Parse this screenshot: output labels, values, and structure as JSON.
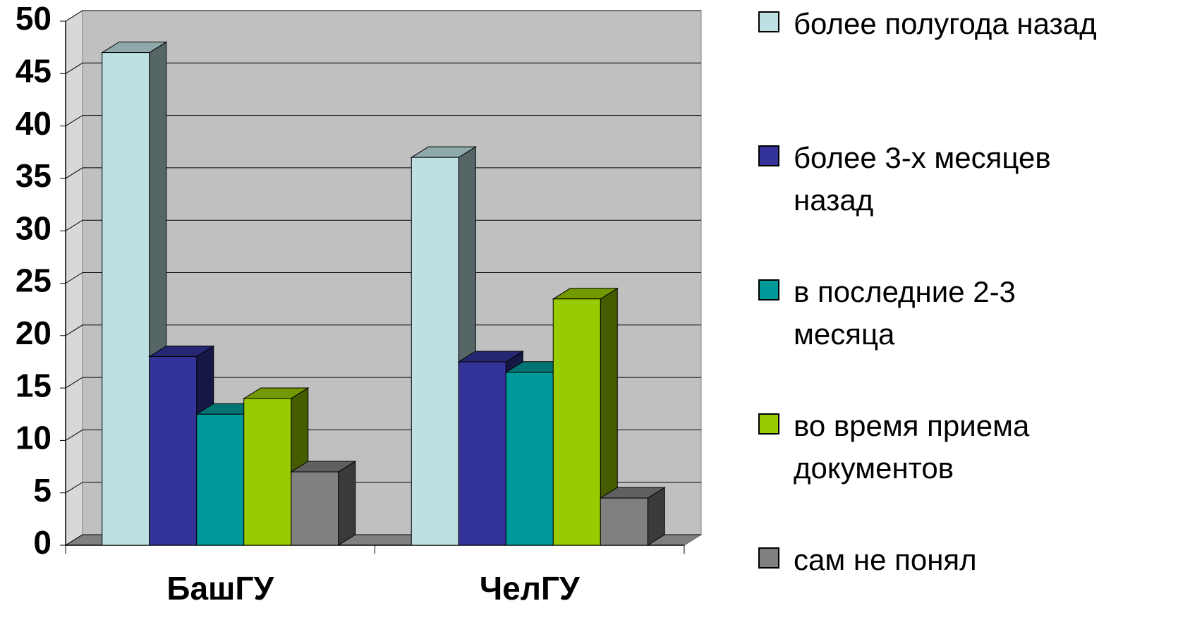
{
  "chart_data": {
    "type": "bar3d",
    "categories": [
      "БашГУ",
      "ЧелГУ"
    ],
    "series": [
      {
        "name": "более полугода назад",
        "color": "#bfe0e3",
        "values": [
          47,
          37
        ]
      },
      {
        "name": "более 3-х месяцев назад",
        "color": "#333399",
        "values": [
          18,
          17.5
        ]
      },
      {
        "name": "в последние 2-3 месяца",
        "color": "#009999",
        "values": [
          12.5,
          16.5
        ]
      },
      {
        "name": "во время приема документов",
        "color": "#99cc00",
        "values": [
          14,
          23.5
        ]
      },
      {
        "name": "сам не понял",
        "color": "#808080",
        "values": [
          7,
          4.5
        ]
      }
    ],
    "ylim": [
      0,
      50
    ],
    "yticks": [
      0,
      5,
      10,
      15,
      20,
      25,
      30,
      35,
      40,
      45,
      50
    ],
    "grid": true,
    "legend": "right"
  }
}
